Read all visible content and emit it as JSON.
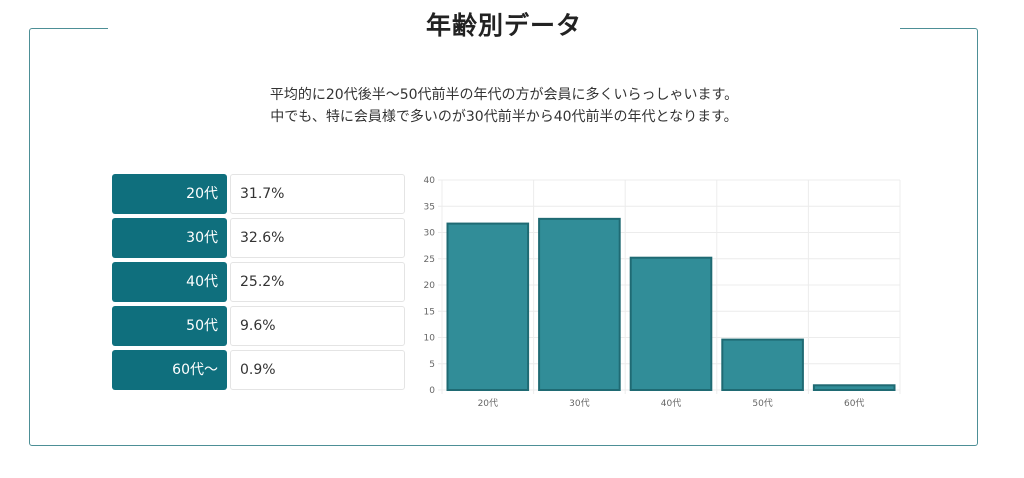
{
  "title": "年齢別データ",
  "description": [
    "平均的に20代後半〜50代前半の年代の方が会員に多くいらっしゃいます。",
    "中でも、特に会員様で多いのが30代前半から40代前半の年代となります。"
  ],
  "table": [
    {
      "label": "20代",
      "value": "31.7%"
    },
    {
      "label": "30代",
      "value": "32.6%"
    },
    {
      "label": "40代",
      "value": "25.2%"
    },
    {
      "label": "50代",
      "value": "9.6%"
    },
    {
      "label": "60代〜",
      "value": "0.9%"
    }
  ],
  "colors": {
    "frame": "#4d8f96",
    "label_bg": "#0f6f7d",
    "bar_fill": "#318d98",
    "bar_stroke": "#1f6a73",
    "grid": "#ececec"
  },
  "chart_data": {
    "type": "bar",
    "categories": [
      "20代",
      "30代",
      "40代",
      "50代",
      "60代"
    ],
    "values": [
      31.7,
      32.6,
      25.2,
      9.6,
      0.9
    ],
    "title": "",
    "xlabel": "",
    "ylabel": "",
    "ylim": [
      0,
      40
    ],
    "yticks": [
      0,
      5,
      10,
      15,
      20,
      25,
      30,
      35,
      40
    ],
    "grid": true,
    "legend": "none"
  }
}
